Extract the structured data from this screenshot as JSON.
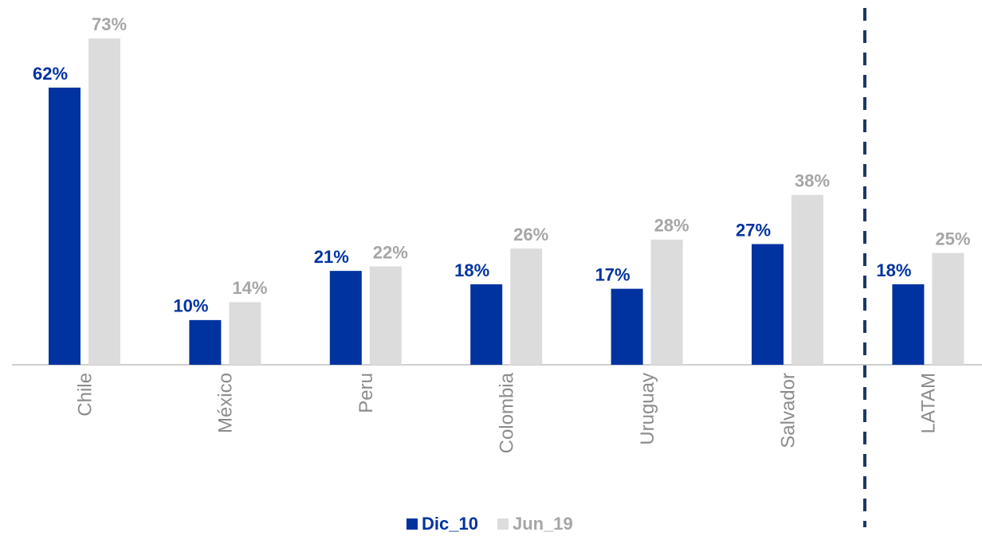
{
  "chart_data": {
    "type": "bar",
    "categories": [
      "Chile",
      "México",
      "Peru",
      "Colombia",
      "Uruguay",
      "Salvador",
      "LATAM"
    ],
    "series": [
      {
        "name": "Dic_10",
        "color": "#0033a0",
        "values": [
          62,
          10,
          21,
          18,
          17,
          27,
          18
        ],
        "value_labels": [
          "62%",
          "10%",
          "21%",
          "18%",
          "17%",
          "27%",
          "18%"
        ]
      },
      {
        "name": "Jun_19",
        "color": "#dcdcdc",
        "values": [
          73,
          14,
          22,
          26,
          28,
          38,
          25
        ],
        "value_labels": [
          "73%",
          "14%",
          "22%",
          "26%",
          "28%",
          "38%",
          "25%"
        ]
      }
    ],
    "ylim": [
      0,
      80
    ],
    "legend": "bottom"
  }
}
